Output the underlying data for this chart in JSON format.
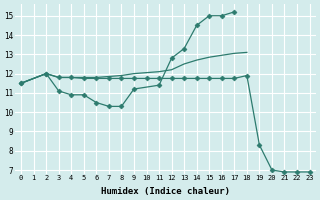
{
  "xlabel": "Humidex (Indice chaleur)",
  "bg_color": "#d4ecec",
  "grid_color": "#ffffff",
  "line_color": "#2d7b6e",
  "xlim": [
    -0.5,
    23.5
  ],
  "ylim": [
    6.8,
    15.6
  ],
  "yticks": [
    7,
    8,
    9,
    10,
    11,
    12,
    13,
    14,
    15
  ],
  "xticks": [
    0,
    1,
    2,
    3,
    4,
    5,
    6,
    7,
    8,
    9,
    10,
    11,
    12,
    13,
    14,
    15,
    16,
    17,
    18,
    19,
    20,
    21,
    22,
    23
  ],
  "curve1_x": [
    0,
    2,
    3,
    4,
    5,
    6,
    7,
    8,
    9,
    11,
    12,
    13,
    14,
    15,
    16,
    17
  ],
  "curve1_y": [
    11.5,
    12.0,
    11.1,
    10.9,
    10.9,
    10.5,
    10.3,
    10.3,
    11.2,
    11.4,
    12.8,
    13.3,
    14.5,
    15.0,
    15.0,
    15.2
  ],
  "curve2_x": [
    0,
    2,
    3,
    4,
    5,
    6,
    7,
    8,
    9,
    10,
    11,
    12,
    13,
    14,
    15,
    16,
    17,
    18
  ],
  "curve2_y": [
    11.5,
    12.0,
    11.8,
    11.8,
    11.8,
    11.8,
    11.85,
    11.9,
    12.0,
    12.05,
    12.1,
    12.2,
    12.5,
    12.7,
    12.85,
    12.95,
    13.05,
    13.1
  ],
  "curve3_x": [
    0,
    2,
    3,
    4,
    5,
    6,
    7,
    8,
    9,
    10,
    11,
    12,
    13,
    14,
    15,
    16,
    17,
    18,
    19,
    20,
    21,
    22,
    23
  ],
  "curve3_y": [
    11.5,
    12.0,
    11.8,
    11.8,
    11.75,
    11.75,
    11.75,
    11.75,
    11.75,
    11.75,
    11.75,
    11.75,
    11.75,
    11.75,
    11.75,
    11.75,
    11.75,
    11.9,
    8.3,
    7.0,
    6.9,
    6.9,
    6.9
  ],
  "marker": "D",
  "markersize": 2.5,
  "linewidth": 0.9
}
